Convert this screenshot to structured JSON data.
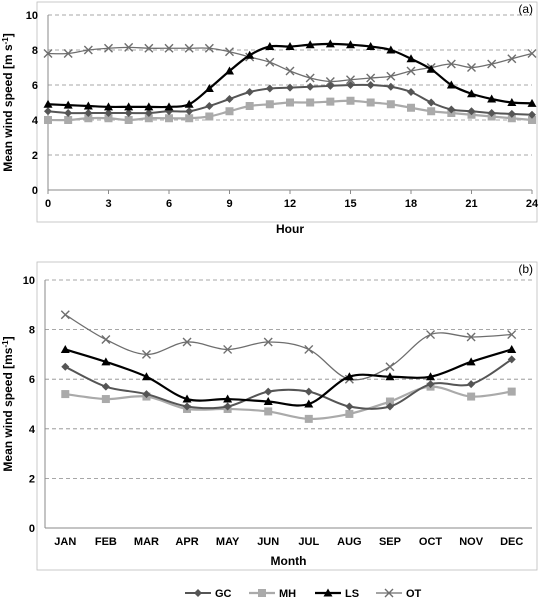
{
  "colors": {
    "GC": "#555555",
    "MH": "#aaaaaa",
    "LS": "#000000",
    "OT": "#6e6e6e"
  },
  "chart_data": [
    {
      "type": "line",
      "panel_label": "(a)",
      "title": "",
      "xlabel": "Hour",
      "ylabel": "Mean wind speed",
      "ylabel_unit": "[m s",
      "ylabel_sup": "-1",
      "ylabel_close": "]",
      "xlim": [
        0,
        24
      ],
      "ylim": [
        0,
        10
      ],
      "grid": true,
      "x_ticks": [
        0,
        3,
        6,
        9,
        12,
        15,
        18,
        21,
        24
      ],
      "y_ticks": [
        0,
        2,
        4,
        6,
        8,
        10
      ],
      "x": [
        0,
        1,
        2,
        3,
        4,
        5,
        6,
        7,
        8,
        9,
        10,
        11,
        12,
        13,
        14,
        15,
        16,
        17,
        18,
        19,
        20,
        21,
        22,
        23,
        24
      ],
      "series": [
        {
          "name": "GC",
          "marker": "diamond",
          "values": [
            4.5,
            4.4,
            4.4,
            4.4,
            4.4,
            4.4,
            4.5,
            4.5,
            4.8,
            5.2,
            5.6,
            5.8,
            5.85,
            5.9,
            5.95,
            6.0,
            6.0,
            5.9,
            5.6,
            5.0,
            4.6,
            4.5,
            4.4,
            4.35,
            4.3
          ]
        },
        {
          "name": "MH",
          "marker": "square",
          "values": [
            4.0,
            4.0,
            4.1,
            4.1,
            4.0,
            4.1,
            4.1,
            4.1,
            4.2,
            4.5,
            4.8,
            4.9,
            5.0,
            5.0,
            5.05,
            5.1,
            5.0,
            4.9,
            4.7,
            4.5,
            4.4,
            4.3,
            4.2,
            4.1,
            4.0
          ]
        },
        {
          "name": "LS",
          "marker": "triangle",
          "values": [
            4.9,
            4.85,
            4.8,
            4.75,
            4.75,
            4.75,
            4.75,
            4.9,
            5.8,
            6.8,
            7.7,
            8.2,
            8.2,
            8.3,
            8.35,
            8.3,
            8.2,
            8.0,
            7.5,
            6.9,
            6.0,
            5.5,
            5.2,
            5.0,
            4.95
          ]
        },
        {
          "name": "OT",
          "marker": "x",
          "values": [
            7.8,
            7.8,
            8.0,
            8.1,
            8.15,
            8.1,
            8.1,
            8.1,
            8.1,
            7.9,
            7.6,
            7.3,
            6.8,
            6.4,
            6.2,
            6.3,
            6.4,
            6.5,
            6.8,
            7.0,
            7.2,
            7.0,
            7.2,
            7.5,
            7.8
          ]
        }
      ]
    },
    {
      "type": "line",
      "panel_label": "(b)",
      "title": "",
      "xlabel": "Month",
      "ylabel": "Mean wind speed",
      "ylabel_unit": "[ms",
      "ylabel_sup": "-1",
      "ylabel_close": "]",
      "ylim": [
        0,
        10
      ],
      "grid": true,
      "y_ticks": [
        0,
        2,
        4,
        6,
        8,
        10
      ],
      "categories": [
        "JAN",
        "FEB",
        "MAR",
        "APR",
        "MAY",
        "JUN",
        "JUL",
        "AUG",
        "SEP",
        "OCT",
        "NOV",
        "DEC"
      ],
      "series": [
        {
          "name": "GC",
          "marker": "diamond",
          "values": [
            6.5,
            5.7,
            5.4,
            4.9,
            4.9,
            5.5,
            5.5,
            4.9,
            4.9,
            5.8,
            5.8,
            6.8
          ]
        },
        {
          "name": "MH",
          "marker": "square",
          "values": [
            5.4,
            5.2,
            5.3,
            4.8,
            4.8,
            4.7,
            4.4,
            4.6,
            5.1,
            5.7,
            5.3,
            5.5
          ]
        },
        {
          "name": "LS",
          "marker": "triangle",
          "values": [
            7.2,
            6.7,
            6.1,
            5.2,
            5.2,
            5.1,
            5.0,
            6.1,
            6.1,
            6.1,
            6.7,
            7.2
          ]
        },
        {
          "name": "OT",
          "marker": "x",
          "values": [
            8.6,
            7.6,
            7.0,
            7.5,
            7.2,
            7.5,
            7.2,
            6.0,
            6.5,
            7.8,
            7.7,
            7.8
          ]
        }
      ]
    }
  ],
  "legend": {
    "placement": "bottom",
    "items": [
      {
        "name": "GC",
        "marker": "diamond"
      },
      {
        "name": "MH",
        "marker": "square"
      },
      {
        "name": "LS",
        "marker": "triangle"
      },
      {
        "name": "OT",
        "marker": "x"
      }
    ]
  }
}
